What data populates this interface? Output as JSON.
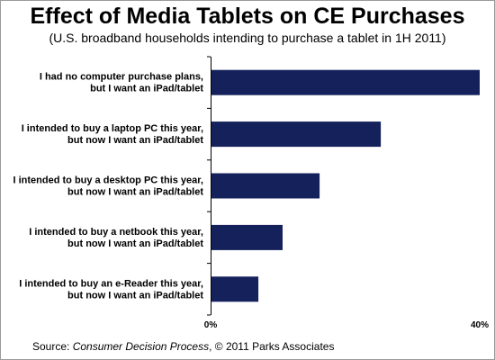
{
  "chart_data": {
    "type": "bar",
    "orientation": "horizontal",
    "title": "Effect of Media Tablets on CE Purchases",
    "subtitle": "(U.S. broadband households intending to purchase a tablet in 1H 2011)",
    "categories": [
      [
        "I had no computer purchase plans,",
        "but I want an iPad/tablet"
      ],
      [
        "I intended to buy a laptop PC this year,",
        "but now I want an iPad/tablet"
      ],
      [
        "I intended to buy a desktop PC this year,",
        "but now I want an iPad/tablet"
      ],
      [
        "I intended to buy a netbook this year,",
        "but now I want an iPad/tablet"
      ],
      [
        "I intended to buy an e-Reader this year,",
        "but now I want an iPad/tablet"
      ]
    ],
    "values": [
      40,
      25.3,
      16.2,
      10.7,
      7.1
    ],
    "xlim": [
      0,
      40
    ],
    "xticks": [
      "0%",
      "40%"
    ],
    "grid": false,
    "bar_color": "#14215b"
  },
  "source": {
    "prefix": "Source: ",
    "italic": "Consumer Decision Process",
    "suffix": ", © 2011 Parks Associates"
  }
}
